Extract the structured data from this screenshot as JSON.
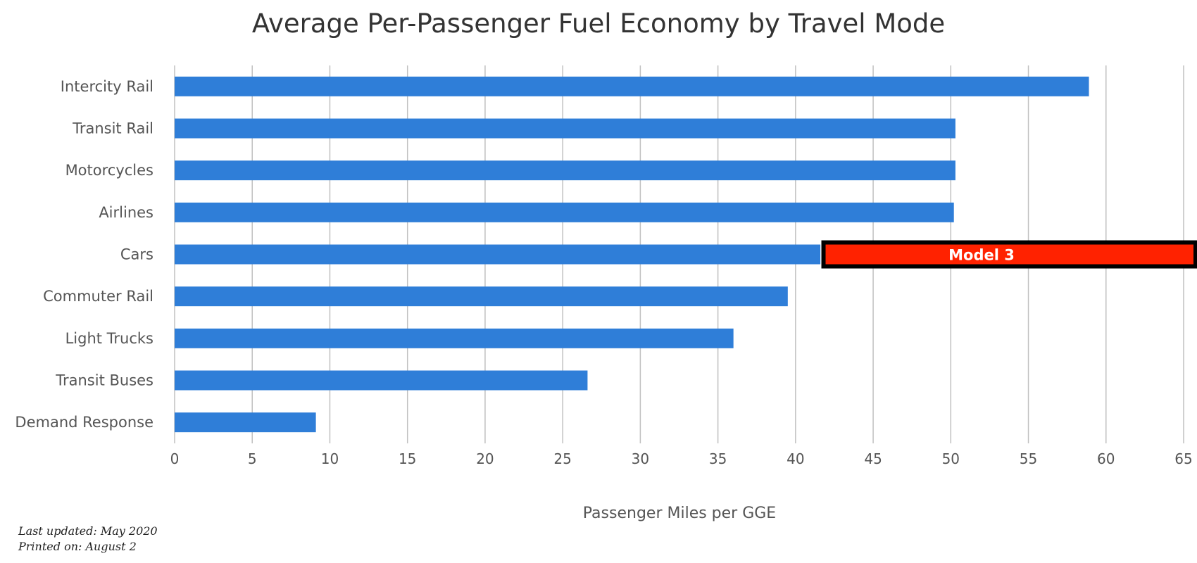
{
  "chart_data": {
    "type": "bar",
    "orientation": "horizontal",
    "title": "Average Per-Passenger Fuel Economy by Travel Mode",
    "xlabel": "Passenger Miles per GGE",
    "ylabel": "",
    "categories": [
      "Intercity Rail",
      "Transit Rail",
      "Motorcycles",
      "Airlines",
      "Cars",
      "Commuter Rail",
      "Light Trucks",
      "Transit Buses",
      "Demand Response"
    ],
    "values": [
      58.9,
      50.3,
      50.3,
      50.2,
      41.6,
      39.5,
      36.0,
      26.6,
      9.1
    ],
    "xlim": [
      0,
      65
    ],
    "xticks": [
      0,
      5,
      10,
      15,
      20,
      25,
      30,
      35,
      40,
      45,
      50,
      55,
      60,
      65
    ],
    "grid": "vertical",
    "legend": "none",
    "bar_color": "#2f7ed8",
    "annotation": {
      "text": "Model 3",
      "category": "Cars",
      "x_start": 41.8,
      "x_end": 65,
      "fill_color": "#ff2200",
      "border_color": "#000000"
    }
  },
  "footer": {
    "last_updated": "Last updated: May 2020",
    "printed_on": "Printed on: August 2"
  }
}
